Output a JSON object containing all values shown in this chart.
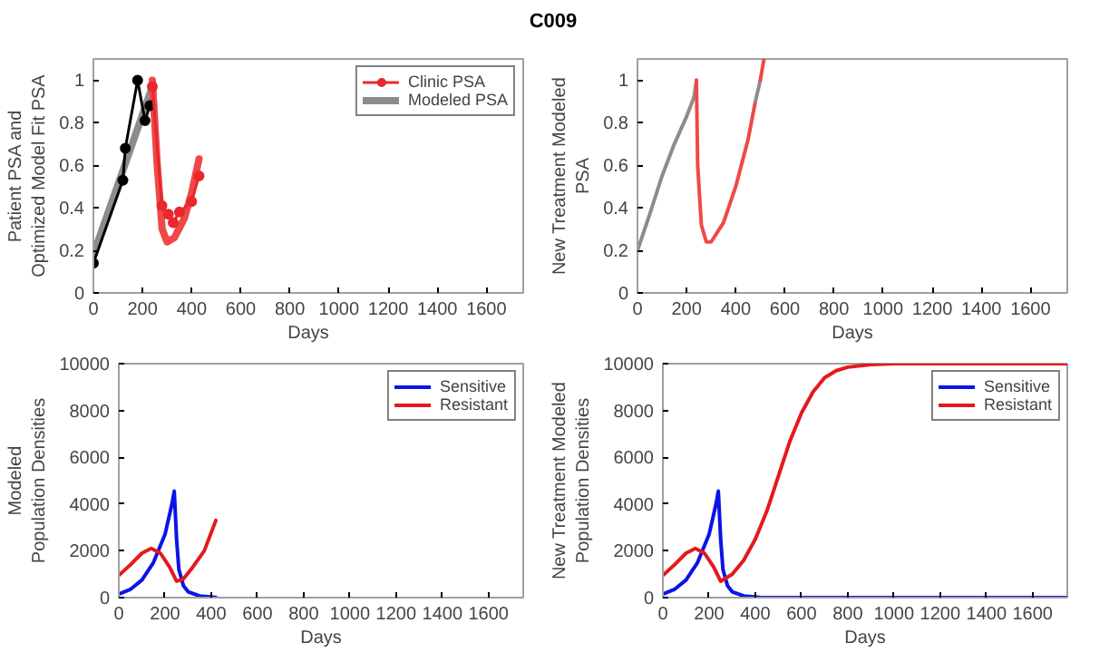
{
  "chart_data": [
    {
      "type": "line",
      "title": "C009",
      "xlabel": "Days",
      "ylabel": "Patient PSA and\nOptimized Model Fit PSA",
      "xlim": [
        0,
        1750
      ],
      "ylim": [
        0,
        1.1
      ],
      "xticks": [
        0,
        200,
        400,
        600,
        800,
        1000,
        1200,
        1400,
        1600
      ],
      "yticks": [
        0,
        0.2,
        0.4,
        0.6,
        0.8,
        1
      ],
      "grid": false,
      "legend": "top right",
      "series": [
        {
          "color": "#000000",
          "marker": "circle",
          "x": [
            0,
            120,
            130,
            180,
            210,
            230
          ],
          "values": [
            0.14,
            0.53,
            0.68,
            1.0,
            0.81,
            0.88
          ]
        },
        {
          "name": "Clinic PSA",
          "color": "#e8282b",
          "marker": "circle",
          "x": [
            240,
            279,
            305,
            325,
            350,
            400,
            430
          ],
          "values": [
            0.97,
            0.41,
            0.37,
            0.33,
            0.38,
            0.43,
            0.55
          ]
        },
        {
          "name": "Modeled PSA",
          "color": "#8c8c8c",
          "x": [
            0,
            240
          ],
          "values": [
            0.18,
            0.97
          ]
        },
        {
          "color": "#f04848",
          "x": [
            240,
            260,
            280,
            300,
            330,
            370,
            400,
            430
          ],
          "values": [
            1.0,
            0.6,
            0.3,
            0.24,
            0.26,
            0.35,
            0.47,
            0.63
          ]
        }
      ]
    },
    {
      "type": "line",
      "xlabel": "Days",
      "ylabel": "New Treatment Modeled\nPSA",
      "xlim": [
        0,
        1750
      ],
      "ylim": [
        0,
        1.1
      ],
      "xticks": [
        0,
        200,
        400,
        600,
        800,
        1000,
        1200,
        1400,
        1600
      ],
      "yticks": [
        0,
        0.2,
        0.4,
        0.6,
        0.8,
        1
      ],
      "grid": false,
      "series": [
        {
          "color": "#8c8c8c",
          "x": [
            0,
            50,
            100,
            150,
            200,
            230,
            240
          ],
          "values": [
            0.2,
            0.37,
            0.55,
            0.7,
            0.83,
            0.92,
            1.0
          ]
        },
        {
          "color": "#f04848",
          "x": [
            240,
            245,
            260,
            280,
            300,
            350,
            400,
            450,
            480
          ],
          "values": [
            1.0,
            0.6,
            0.32,
            0.24,
            0.24,
            0.33,
            0.5,
            0.72,
            0.9
          ]
        },
        {
          "color": "#8c8c8c",
          "x": [
            480,
            500
          ],
          "values": [
            0.9,
            1.0
          ]
        },
        {
          "color": "#f04848",
          "x": [
            500,
            515
          ],
          "values": [
            1.0,
            1.1
          ]
        }
      ]
    },
    {
      "type": "line",
      "xlabel": "Days",
      "ylabel": "Modeled\nPopulation Densities",
      "xlim": [
        0,
        1750
      ],
      "ylim": [
        0,
        10000
      ],
      "xticks": [
        0,
        200,
        400,
        600,
        800,
        1000,
        1200,
        1400,
        1600
      ],
      "yticks": [
        0,
        2000,
        4000,
        6000,
        8000,
        10000
      ],
      "grid": false,
      "legend": "top right",
      "series": [
        {
          "name": "Sensitive",
          "color": "#0a14e6",
          "x": [
            0,
            50,
            100,
            150,
            200,
            230,
            240,
            250,
            260,
            280,
            300,
            350,
            420
          ],
          "values": [
            150,
            350,
            750,
            1500,
            2700,
            4000,
            4550,
            2500,
            1200,
            500,
            250,
            70,
            10
          ]
        },
        {
          "name": "Resistant",
          "color": "#e31a1c",
          "x": [
            0,
            50,
            100,
            140,
            180,
            220,
            250,
            280,
            320,
            370,
            420
          ],
          "values": [
            950,
            1400,
            1900,
            2100,
            1900,
            1300,
            700,
            800,
            1300,
            2000,
            3300
          ]
        }
      ]
    },
    {
      "type": "line",
      "xlabel": "Days",
      "ylabel": "New Treatment Modeled\nPopulation Densities",
      "xlim": [
        0,
        1750
      ],
      "ylim": [
        0,
        10000
      ],
      "xticks": [
        0,
        200,
        400,
        600,
        800,
        1000,
        1200,
        1400,
        1600
      ],
      "yticks": [
        0,
        2000,
        4000,
        6000,
        8000,
        10000
      ],
      "grid": false,
      "legend": "top right",
      "series": [
        {
          "name": "Sensitive",
          "color": "#0a14e6",
          "x": [
            0,
            50,
            100,
            150,
            200,
            230,
            240,
            250,
            260,
            280,
            300,
            350,
            420,
            600,
            1750
          ],
          "values": [
            150,
            350,
            750,
            1500,
            2700,
            4000,
            4550,
            2500,
            1200,
            500,
            250,
            70,
            10,
            0,
            0
          ]
        },
        {
          "name": "Resistant",
          "color": "#e31a1c",
          "x": [
            0,
            50,
            100,
            140,
            180,
            220,
            250,
            300,
            350,
            400,
            450,
            500,
            550,
            600,
            650,
            700,
            750,
            800,
            900,
            1000,
            1750
          ],
          "values": [
            950,
            1400,
            1900,
            2100,
            1900,
            1300,
            700,
            1000,
            1600,
            2500,
            3700,
            5200,
            6700,
            7900,
            8800,
            9400,
            9700,
            9850,
            9960,
            10000,
            10000
          ]
        }
      ]
    }
  ]
}
